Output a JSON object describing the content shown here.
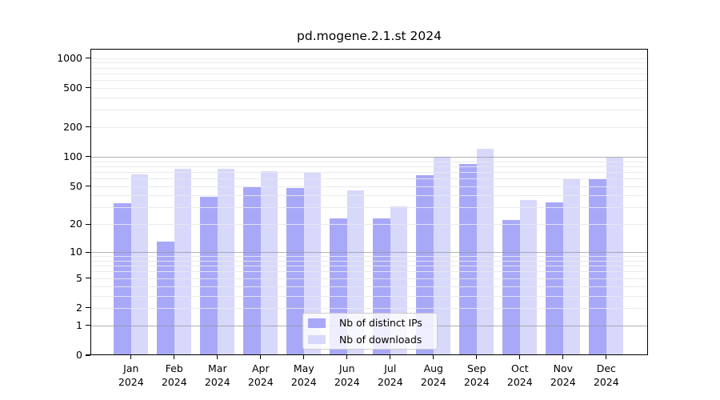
{
  "title": "pd.mogene.2.1.st 2024",
  "chart_data": {
    "type": "bar",
    "year": "2024",
    "categories": [
      "Jan",
      "Feb",
      "Mar",
      "Apr",
      "May",
      "Jun",
      "Jul",
      "Aug",
      "Sep",
      "Oct",
      "Nov",
      "Dec"
    ],
    "series": [
      {
        "name": "Nb of distinct IPs",
        "color": "#a8a8f8",
        "values": [
          33,
          13,
          39,
          49,
          48,
          23,
          23,
          65,
          85,
          22,
          34,
          59
        ]
      },
      {
        "name": "Nb of downloads",
        "color": "#d8d8fa",
        "values": [
          66,
          76,
          75,
          71,
          68,
          45,
          31,
          99,
          120,
          36,
          59,
          98
        ]
      }
    ],
    "y_scale": "log1p",
    "y_ticks": [
      0,
      1,
      2,
      5,
      10,
      20,
      50,
      100,
      200,
      500,
      1000
    ],
    "ylim": [
      0,
      1240
    ],
    "grid": {
      "major": [
        1,
        10,
        100
      ],
      "minor": [
        2,
        3,
        4,
        5,
        6,
        7,
        8,
        9,
        20,
        30,
        40,
        50,
        60,
        70,
        80,
        90,
        200,
        300,
        400,
        500,
        600,
        700,
        800,
        900,
        1000
      ]
    },
    "legend_position": "bottom-center",
    "xlabel": "",
    "ylabel": ""
  },
  "colors": {
    "background": "#ffffff",
    "spine": "#000000",
    "major_grid": "rgba(150,150,158,0.75)",
    "minor_grid": "rgba(232,232,238,0.9)"
  }
}
